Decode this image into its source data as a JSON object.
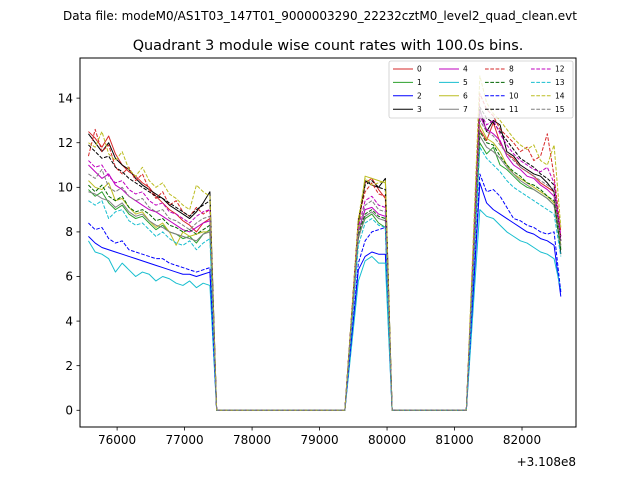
{
  "figure": {
    "header": "Data file: modeM0/AS1T03_147T01_9000003290_22232cztM0_level2_quad_clean.evt"
  },
  "chart_data": {
    "type": "line",
    "title": "Quadrant 3 module wise count rates with 100.0s bins.",
    "xlabel": "",
    "ylabel": "",
    "x_offset_label": "+3.108e8",
    "xlim": [
      75450,
      82800
    ],
    "ylim": [
      -0.75,
      15.8
    ],
    "x_ticks": [
      76000,
      77000,
      78000,
      79000,
      80000,
      81000,
      82000
    ],
    "x_tick_labels": [
      "76000",
      "77000",
      "78000",
      "79000",
      "80000",
      "81000",
      "82000"
    ],
    "y_ticks": [
      0,
      2,
      4,
      6,
      8,
      10,
      12,
      14
    ],
    "y_tick_labels": [
      "0",
      "2",
      "4",
      "6",
      "8",
      "10",
      "12",
      "14"
    ],
    "grid": false,
    "legend_position": "top-right",
    "legend_columns": 4,
    "segments": [
      {
        "start": 75575,
        "n": 19
      },
      {
        "start": 79575,
        "n": 5
      },
      {
        "start": 81375,
        "n": 13
      }
    ],
    "gap_points": [
      [
        77475,
        79375
      ],
      [
        80075,
        81175
      ]
    ],
    "series": [
      {
        "name": "0",
        "color": "#d62728",
        "style": "solid",
        "segments": [
          [
            12.5,
            12.2,
            11.8,
            12.3,
            11.5,
            11.0,
            10.7,
            10.5,
            10.2,
            10.0,
            9.6,
            9.3,
            9.0,
            8.8,
            8.5,
            8.3,
            8.0,
            8.4,
            8.6
          ],
          [
            8.3,
            10.2,
            10.4,
            9.9,
            9.5
          ],
          [
            12.6,
            12.1,
            12.9,
            12.0,
            11.5,
            11.3,
            10.9,
            10.7,
            10.5,
            10.2,
            10.0,
            9.8,
            7.8
          ]
        ]
      },
      {
        "name": "1",
        "color": "#2ca02c",
        "style": "solid",
        "segments": [
          [
            9.9,
            9.6,
            9.8,
            9.3,
            9.0,
            9.2,
            8.8,
            8.6,
            8.7,
            8.4,
            8.1,
            8.3,
            8.0,
            7.9,
            7.7,
            7.8,
            7.5,
            7.9,
            8.1
          ],
          [
            7.8,
            8.6,
            8.8,
            8.4,
            8.2
          ],
          [
            12.0,
            11.5,
            11.8,
            11.0,
            10.8,
            10.5,
            10.2,
            10.0,
            9.9,
            9.7,
            9.5,
            9.2,
            7.3
          ]
        ]
      },
      {
        "name": "2",
        "color": "#0000ff",
        "style": "solid",
        "segments": [
          [
            7.8,
            7.5,
            7.3,
            7.2,
            7.1,
            7.0,
            6.9,
            6.8,
            6.7,
            6.6,
            6.5,
            6.4,
            6.3,
            6.2,
            6.1,
            6.1,
            6.0,
            6.1,
            6.2
          ],
          [
            6.3,
            6.9,
            7.1,
            7.0,
            7.0
          ],
          [
            10.2,
            9.3,
            9.0,
            8.8,
            8.6,
            8.4,
            8.2,
            8.0,
            7.9,
            7.7,
            7.6,
            7.4,
            5.1
          ]
        ]
      },
      {
        "name": "3",
        "color": "#000000",
        "style": "solid",
        "segments": [
          [
            12.4,
            12.0,
            11.6,
            12.0,
            11.3,
            11.0,
            10.8,
            10.4,
            10.1,
            9.9,
            9.7,
            9.5,
            9.2,
            9.0,
            8.8,
            8.6,
            8.9,
            9.3,
            9.8
          ],
          [
            8.4,
            10.3,
            10.1,
            10.0,
            10.4
          ],
          [
            13.5,
            12.5,
            13.0,
            12.8,
            11.6,
            11.4,
            11.0,
            10.8,
            10.6,
            10.5,
            10.2,
            9.8,
            7.0
          ]
        ]
      },
      {
        "name": "4",
        "color": "#bf00bf",
        "style": "solid",
        "segments": [
          [
            11.0,
            10.7,
            10.4,
            10.6,
            10.1,
            9.9,
            9.6,
            9.4,
            9.2,
            9.0,
            8.9,
            8.7,
            8.5,
            8.3,
            8.1,
            8.0,
            8.2,
            8.4,
            8.5
          ],
          [
            8.0,
            9.0,
            9.1,
            8.8,
            8.7
          ],
          [
            13.2,
            12.6,
            12.4,
            12.1,
            11.4,
            11.0,
            10.8,
            10.5,
            10.4,
            10.1,
            9.9,
            9.6,
            7.6
          ]
        ]
      },
      {
        "name": "5",
        "color": "#17becf",
        "style": "solid",
        "segments": [
          [
            7.6,
            7.1,
            7.0,
            6.8,
            6.2,
            6.6,
            6.3,
            6.0,
            6.2,
            6.1,
            5.8,
            6.0,
            5.9,
            5.7,
            5.6,
            5.8,
            5.5,
            5.7,
            5.6
          ],
          [
            5.8,
            6.7,
            6.9,
            6.6,
            6.6
          ],
          [
            9.0,
            8.7,
            8.6,
            8.3,
            8.0,
            7.8,
            7.6,
            7.5,
            7.3,
            7.1,
            7.0,
            6.8,
            5.4
          ]
        ]
      },
      {
        "name": "6",
        "color": "#bcbd22",
        "style": "solid",
        "segments": [
          [
            10.3,
            10.0,
            9.9,
            10.2,
            9.4,
            9.5,
            9.1,
            8.8,
            8.9,
            8.5,
            8.2,
            8.4,
            8.0,
            7.4,
            8.0,
            7.8,
            7.9,
            8.0,
            8.0
          ],
          [
            8.1,
            10.5,
            10.4,
            10.3,
            10.2
          ],
          [
            12.8,
            12.2,
            12.0,
            11.6,
            11.0,
            10.6,
            10.4,
            10.2,
            10.0,
            9.8,
            9.6,
            9.3,
            7.4
          ]
        ]
      },
      {
        "name": "7",
        "color": "#7f7f7f",
        "style": "solid",
        "segments": [
          [
            9.8,
            9.7,
            9.5,
            9.4,
            9.1,
            9.3,
            8.9,
            8.7,
            8.8,
            8.5,
            8.3,
            8.2,
            8.0,
            7.9,
            7.8,
            7.7,
            7.6,
            7.9,
            8.0
          ],
          [
            7.7,
            8.7,
            8.9,
            8.6,
            8.5
          ],
          [
            12.3,
            11.8,
            11.6,
            11.3,
            10.9,
            10.6,
            10.3,
            10.1,
            9.9,
            9.7,
            9.5,
            9.2,
            7.2
          ]
        ]
      },
      {
        "name": "8",
        "color": "#d62728",
        "style": "dashed",
        "segments": [
          [
            11.4,
            12.6,
            11.6,
            11.9,
            10.9,
            10.6,
            10.9,
            10.3,
            10.6,
            9.9,
            9.5,
            9.8,
            9.2,
            9.4,
            8.9,
            8.7,
            9.1,
            8.8,
            9.0
          ],
          [
            8.6,
            9.8,
            10.2,
            9.7,
            9.6
          ],
          [
            14.2,
            13.5,
            13.2,
            12.6,
            12.3,
            12.0,
            11.6,
            11.8,
            11.2,
            11.4,
            12.4,
            10.5,
            8.0
          ]
        ]
      },
      {
        "name": "9",
        "color": "#006400",
        "style": "dashed",
        "segments": [
          [
            10.1,
            9.8,
            10.1,
            9.6,
            9.4,
            9.6,
            9.1,
            8.9,
            9.0,
            8.8,
            8.5,
            8.6,
            8.3,
            8.2,
            8.0,
            8.1,
            7.9,
            8.1,
            8.3
          ],
          [
            7.9,
            8.8,
            9.0,
            8.7,
            8.6
          ],
          [
            12.5,
            12.0,
            11.9,
            11.4,
            11.0,
            10.7,
            10.5,
            10.2,
            10.1,
            9.9,
            9.6,
            9.4,
            7.2
          ]
        ]
      },
      {
        "name": "10",
        "color": "#0000ff",
        "style": "dashed",
        "segments": [
          [
            8.4,
            8.1,
            8.2,
            7.7,
            7.5,
            7.6,
            7.2,
            7.1,
            7.0,
            6.9,
            6.8,
            6.8,
            6.6,
            6.5,
            6.4,
            6.3,
            6.2,
            6.3,
            6.4
          ],
          [
            6.6,
            7.6,
            8.0,
            8.1,
            8.2
          ],
          [
            10.6,
            9.8,
            9.9,
            9.6,
            9.1,
            8.6,
            8.5,
            8.3,
            8.2,
            8.0,
            7.9,
            8.0,
            5.3
          ]
        ]
      },
      {
        "name": "11",
        "color": "#000000",
        "style": "dashed",
        "segments": [
          [
            11.9,
            11.6,
            11.3,
            11.4,
            10.9,
            10.7,
            10.4,
            10.2,
            10.0,
            9.8,
            9.6,
            9.5,
            9.3,
            9.1,
            8.9,
            8.7,
            9.0,
            9.2,
            9.4
          ],
          [
            8.5,
            10.1,
            10.3,
            10.0,
            9.9
          ],
          [
            13.6,
            13.1,
            12.9,
            12.5,
            12.1,
            11.7,
            11.3,
            11.1,
            10.9,
            10.6,
            10.4,
            10.1,
            7.6
          ]
        ]
      },
      {
        "name": "12",
        "color": "#bf00bf",
        "style": "dashed",
        "segments": [
          [
            11.2,
            10.9,
            11.0,
            10.5,
            10.2,
            10.3,
            9.9,
            9.7,
            9.8,
            9.4,
            9.2,
            9.3,
            8.9,
            8.8,
            8.6,
            8.4,
            8.7,
            8.9,
            9.0
          ],
          [
            8.2,
            9.4,
            9.6,
            9.2,
            9.1
          ],
          [
            13.4,
            12.8,
            13.0,
            12.4,
            11.9,
            11.5,
            11.2,
            11.0,
            10.8,
            10.7,
            10.9,
            10.2,
            7.8
          ]
        ]
      },
      {
        "name": "13",
        "color": "#17becf",
        "style": "dashed",
        "segments": [
          [
            9.4,
            9.2,
            9.4,
            8.6,
            8.9,
            9.0,
            8.5,
            8.3,
            8.4,
            8.1,
            7.8,
            8.0,
            7.7,
            7.5,
            7.4,
            7.6,
            7.2,
            7.5,
            7.7
          ],
          [
            7.4,
            8.4,
            8.6,
            8.3,
            8.2
          ],
          [
            11.8,
            11.3,
            11.0,
            10.7,
            10.3,
            10.0,
            9.8,
            9.6,
            9.4,
            9.2,
            9.0,
            8.8,
            6.9
          ]
        ]
      },
      {
        "name": "14",
        "color": "#bcbd22",
        "style": "dashed",
        "segments": [
          [
            12.0,
            11.8,
            12.5,
            11.5,
            11.2,
            11.6,
            10.8,
            10.5,
            10.9,
            10.3,
            10.0,
            10.2,
            9.7,
            9.5,
            9.2,
            9.0,
            10.1,
            9.8,
            9.6
          ],
          [
            8.6,
            10.4,
            10.1,
            10.2,
            10.3
          ],
          [
            15.0,
            13.8,
            13.3,
            13.0,
            12.6,
            12.2,
            11.9,
            11.7,
            11.9,
            11.2,
            11.0,
            11.9,
            8.2
          ]
        ]
      },
      {
        "name": "15",
        "color": "#7f7f7f",
        "style": "dashed",
        "segments": [
          [
            10.6,
            10.4,
            10.8,
            10.0,
            9.8,
            10.0,
            9.6,
            9.4,
            9.5,
            9.1,
            8.9,
            9.0,
            8.6,
            8.5,
            8.3,
            8.1,
            8.4,
            8.6,
            8.7
          ],
          [
            8.0,
            9.2,
            9.4,
            9.0,
            8.9
          ],
          [
            13.0,
            12.5,
            12.3,
            11.9,
            11.5,
            11.2,
            10.9,
            10.7,
            10.5,
            10.3,
            10.1,
            9.9,
            7.4
          ]
        ]
      }
    ]
  }
}
